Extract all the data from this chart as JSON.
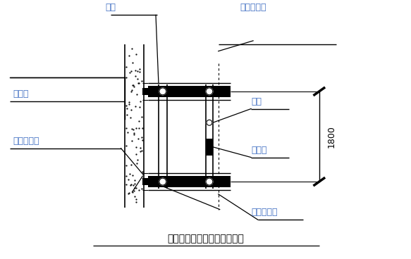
{
  "title": "外架隔离、挡脚板做法示意图",
  "title_color": "#000000",
  "bg_color": "#ffffff",
  "label_color": "#4472C4",
  "line_color": "#000000",
  "labels": {
    "waijia": "外架",
    "jianzhu": "建筑物",
    "jiucengban": "九层板隔离",
    "mianmu": "密目安全网",
    "langan": "栏杆",
    "dangjiaoban": "挡脚板",
    "gangge": "钢笆脚手板",
    "dimension": "1800"
  },
  "figsize": [
    5.83,
    3.68
  ],
  "dpi": 100
}
